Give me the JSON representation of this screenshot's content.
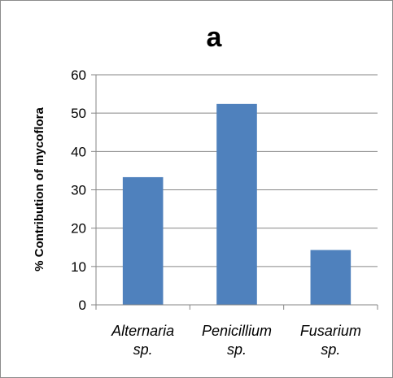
{
  "chart_data": {
    "type": "bar",
    "title": "a",
    "xlabel": "",
    "ylabel": "% Contribution of mycoflora",
    "categories": [
      [
        "Alternaria",
        "sp."
      ],
      [
        "Penicillium",
        "sp."
      ],
      [
        "Fusarium",
        "sp."
      ]
    ],
    "values": [
      33.3,
      52.4,
      14.3
    ],
    "ylim": [
      0,
      60
    ],
    "yticks": [
      0,
      10,
      20,
      30,
      40,
      50,
      60
    ],
    "grid": true,
    "legend": "none",
    "colors": {
      "bar": "#4f81bd",
      "grid": "#868686",
      "axis": "#868686"
    }
  }
}
